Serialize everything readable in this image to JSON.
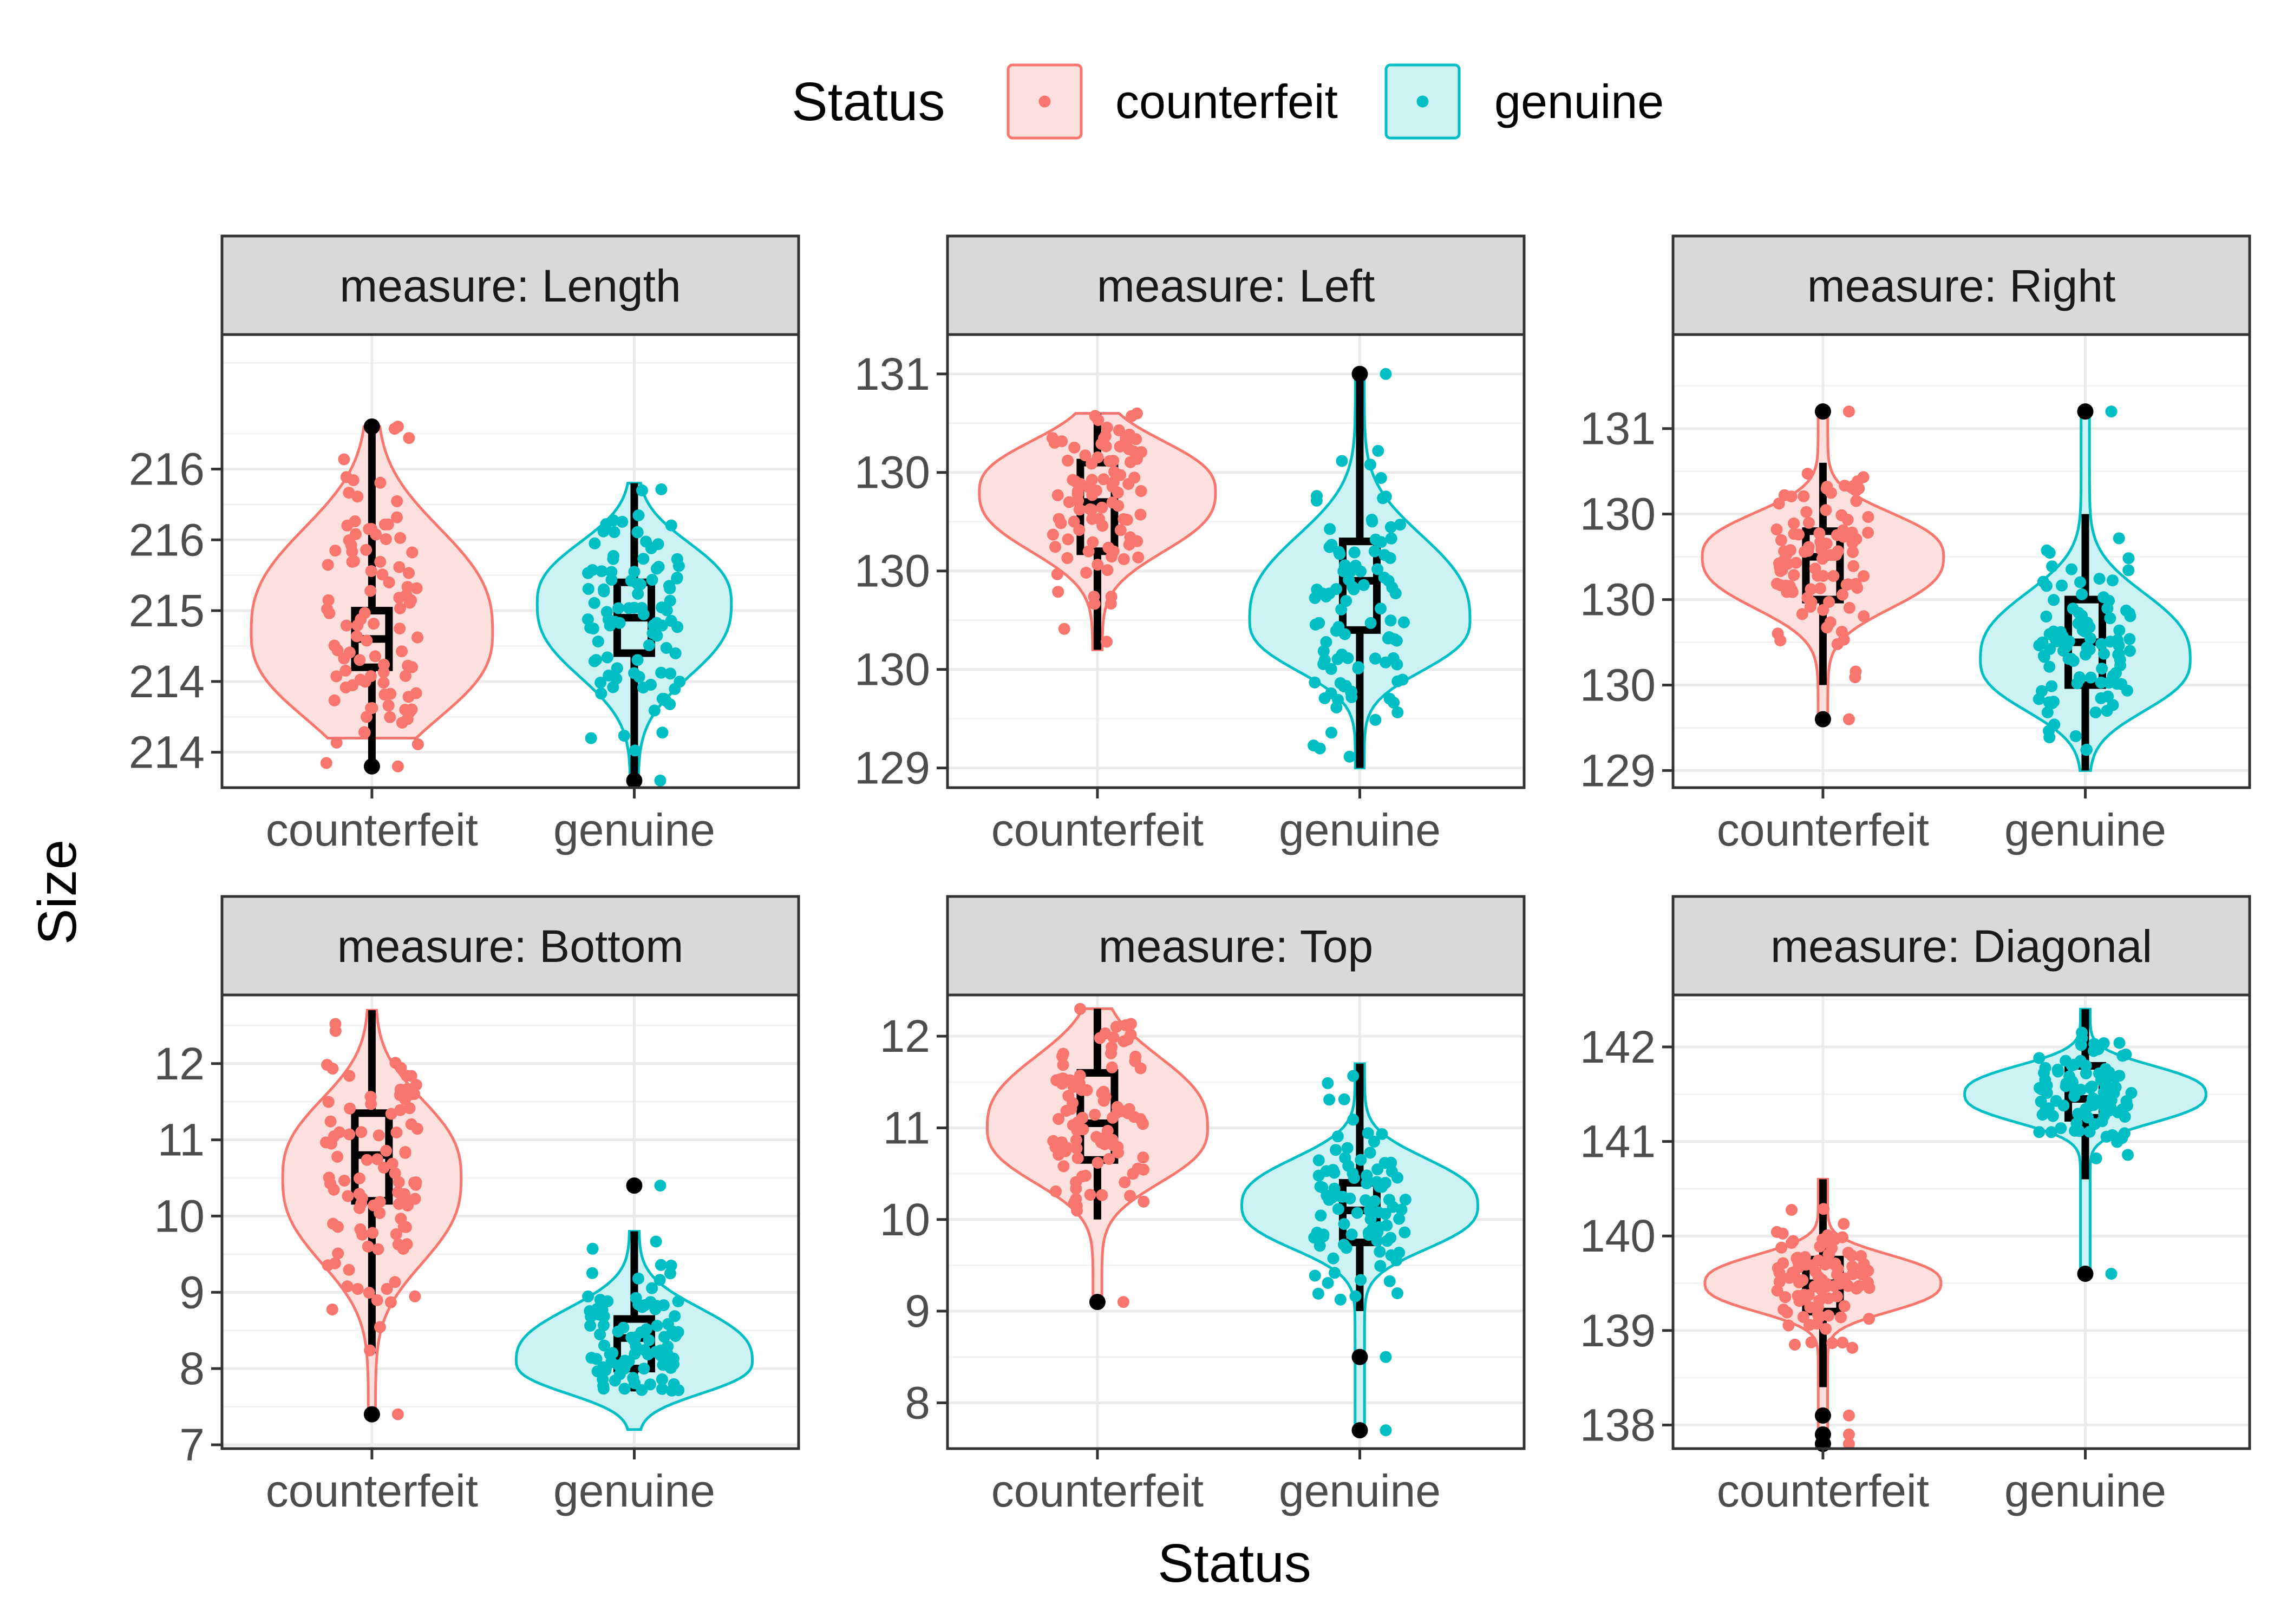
{
  "colors": {
    "counterfeit": "#F8766D",
    "genuine": "#00BFC4",
    "counterfeit_fill": "#FCE0DE",
    "genuine_fill": "#CCF2F3",
    "strip_bg": "#D9D9D9",
    "panel_border": "#333333",
    "grid_major": "#EBEBEB",
    "grid_minor": "#F3F3F3",
    "box": "#000000"
  },
  "legend": {
    "title": "Status",
    "items": [
      {
        "label": "counterfeit",
        "color": "#F8766D",
        "fill": "#FCE0DE"
      },
      {
        "label": "genuine",
        "color": "#00BFC4",
        "fill": "#CCF2F3"
      }
    ],
    "position": "top"
  },
  "axes": {
    "xlabel": "Status",
    "ylabel": "Size"
  },
  "chart_data": {
    "type": "violin",
    "facet_var": "measure",
    "categories": [
      "counterfeit",
      "genuine"
    ],
    "grid": true,
    "panels": [
      {
        "strip": "measure: Length",
        "ylim": [
          213.75,
          216.95
        ],
        "yticks": [
          214,
          214.5,
          215,
          215.5,
          216
        ],
        "ytick_labels": [
          "214",
          "214",
          "215",
          "216",
          "216"
        ],
        "groups": [
          {
            "name": "counterfeit",
            "min": 213.9,
            "q1": 214.6,
            "median": 214.8,
            "q3": 215.0,
            "max": 216.3,
            "outliers": [
              213.9,
              216.3
            ],
            "vmin": 214.1,
            "vmax": 216.3,
            "mode": 214.85,
            "width": 0.46,
            "vlow": 214.15,
            "vhigh": 215.7
          },
          {
            "name": "genuine",
            "min": 213.8,
            "q1": 214.7,
            "median": 214.95,
            "q3": 215.2,
            "max": 215.9,
            "outliers": [
              213.8
            ],
            "vmin": 213.8,
            "vmax": 215.9,
            "mode": 215.05,
            "width": 0.37,
            "vlow": 214.45,
            "vhigh": 215.55
          }
        ]
      },
      {
        "strip": "measure: Left",
        "ylim": [
          128.9,
          131.2
        ],
        "yticks": [
          129,
          129.5,
          130,
          130.5,
          131
        ],
        "ytick_labels": [
          "129",
          "130",
          "130",
          "130",
          "131"
        ],
        "groups": [
          {
            "name": "counterfeit",
            "min": 129.6,
            "q1": 130.1,
            "median": 130.35,
            "q3": 130.55,
            "max": 130.8,
            "outliers": [],
            "vmin": 129.6,
            "vmax": 130.8,
            "mode": 130.4,
            "width": 0.45,
            "vlow": 130.05,
            "vhigh": 130.7
          },
          {
            "name": "genuine",
            "min": 129.0,
            "q1": 129.7,
            "median": 129.95,
            "q3": 130.15,
            "max": 131.0,
            "outliers": [
              131.0
            ],
            "vmin": 129.0,
            "vmax": 131.0,
            "mode": 129.75,
            "width": 0.42,
            "vlow": 129.45,
            "vhigh": 130.25
          }
        ]
      },
      {
        "strip": "measure: Right",
        "ylim": [
          128.9,
          131.55
        ],
        "yticks": [
          129,
          129.5,
          130,
          130.5,
          131
        ],
        "ytick_labels": [
          "129",
          "130",
          "130",
          "130",
          "131"
        ],
        "groups": [
          {
            "name": "counterfeit",
            "min": 129.5,
            "q1": 130.0,
            "median": 130.25,
            "q3": 130.4,
            "max": 130.8,
            "outliers": [
              129.3,
              131.1
            ],
            "vmin": 129.3,
            "vmax": 131.1,
            "mode": 130.25,
            "width": 0.46,
            "vlow": 129.9,
            "vhigh": 130.55
          },
          {
            "name": "genuine",
            "min": 129.0,
            "q1": 129.5,
            "median": 129.75,
            "q3": 130.0,
            "max": 130.5,
            "outliers": [
              131.1
            ],
            "vmin": 129.0,
            "vmax": 131.1,
            "mode": 129.65,
            "width": 0.4,
            "vlow": 129.3,
            "vhigh": 130.1
          }
        ]
      },
      {
        "strip": "measure: Bottom",
        "ylim": [
          6.95,
          12.9
        ],
        "yticks": [
          7,
          8,
          9,
          10,
          11,
          12
        ],
        "ytick_labels": [
          "7",
          "8",
          "9",
          "10",
          "11",
          "12"
        ],
        "groups": [
          {
            "name": "counterfeit",
            "min": 8.2,
            "q1": 10.2,
            "median": 10.8,
            "q3": 11.35,
            "max": 12.7,
            "outliers": [
              7.4
            ],
            "vmin": 7.4,
            "vmax": 12.7,
            "mode": 10.5,
            "width": 0.34,
            "vlow": 9.2,
            "vhigh": 11.7
          },
          {
            "name": "genuine",
            "min": 7.7,
            "q1": 8.0,
            "median": 8.4,
            "q3": 8.65,
            "max": 9.8,
            "outliers": [
              10.4
            ],
            "vmin": 7.2,
            "vmax": 9.8,
            "mode": 8.1,
            "width": 0.45,
            "vlow": 7.6,
            "vhigh": 8.9
          }
        ]
      },
      {
        "strip": "measure: Top",
        "ylim": [
          7.5,
          12.45
        ],
        "yticks": [
          8,
          9,
          10,
          11,
          12
        ],
        "ytick_labels": [
          "8",
          "9",
          "10",
          "11",
          "12"
        ],
        "groups": [
          {
            "name": "counterfeit",
            "min": 10.0,
            "q1": 10.65,
            "median": 11.05,
            "q3": 11.6,
            "max": 12.3,
            "outliers": [
              9.1
            ],
            "vmin": 9.1,
            "vmax": 12.3,
            "mode": 11.0,
            "width": 0.42,
            "vlow": 10.3,
            "vhigh": 11.9
          },
          {
            "name": "genuine",
            "min": 9.0,
            "q1": 9.75,
            "median": 10.1,
            "q3": 10.4,
            "max": 11.7,
            "outliers": [
              8.5,
              7.7
            ],
            "vmin": 7.7,
            "vmax": 11.7,
            "mode": 10.15,
            "width": 0.45,
            "vlow": 9.6,
            "vhigh": 10.75
          }
        ]
      },
      {
        "strip": "measure: Diagonal",
        "ylim": [
          137.75,
          142.55
        ],
        "yticks": [
          138,
          139,
          140,
          141,
          142
        ],
        "ytick_labels": [
          "138",
          "139",
          "140",
          "141",
          "142"
        ],
        "groups": [
          {
            "name": "counterfeit",
            "min": 138.4,
            "q1": 139.2,
            "median": 139.5,
            "q3": 139.75,
            "max": 140.6,
            "outliers": [
              138.1,
              137.9,
              137.8
            ],
            "vmin": 137.8,
            "vmax": 140.6,
            "mode": 139.5,
            "width": 0.45,
            "vlow": 139.15,
            "vhigh": 139.85
          },
          {
            "name": "genuine",
            "min": 140.6,
            "q1": 141.25,
            "median": 141.45,
            "q3": 141.8,
            "max": 142.4,
            "outliers": [
              139.6
            ],
            "vmin": 139.6,
            "vmax": 142.4,
            "mode": 141.5,
            "width": 0.46,
            "vlow": 141.15,
            "vhigh": 141.85
          }
        ]
      }
    ]
  }
}
